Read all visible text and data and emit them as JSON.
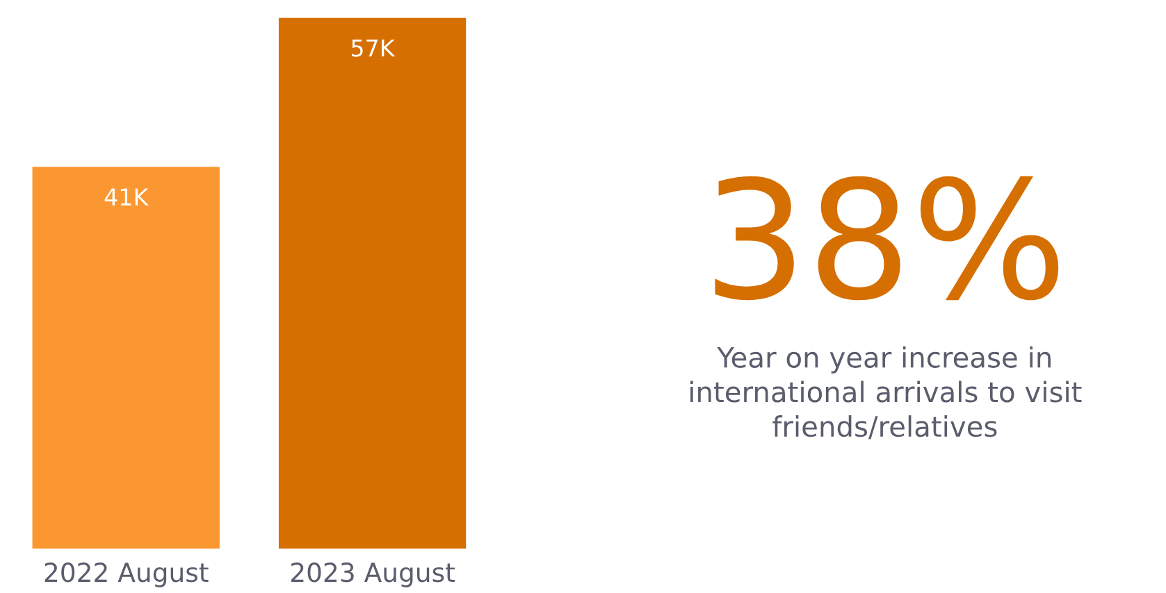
{
  "chart_data": {
    "type": "bar",
    "categories": [
      "2022 August",
      "2023 August"
    ],
    "values": [
      41000,
      57000
    ],
    "value_labels": [
      "41K",
      "57K"
    ],
    "colors": [
      "#fb9731",
      "#d66f02"
    ],
    "grid": false,
    "tick_labels": "x",
    "annotations": [
      "38%",
      "Year on year increase in\ninternational arrivals to visit\nfriends/relatives"
    ]
  }
}
